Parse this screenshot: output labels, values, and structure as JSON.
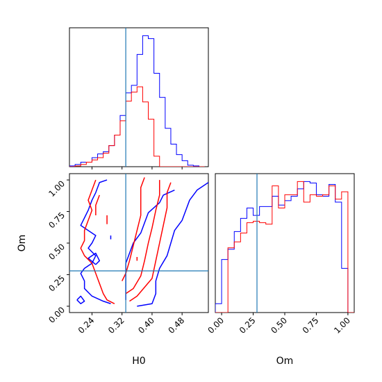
{
  "chart_data": {
    "type": "corner",
    "parameters": [
      "H0",
      "Om"
    ],
    "truths": {
      "H0": 0.33,
      "Om": 0.28
    },
    "colors": {
      "series_a": "#0000ff",
      "series_b": "#ff0000",
      "truth": "#1f77b4"
    },
    "panels": [
      {
        "id": "hist-H0",
        "type": "histogram",
        "x_param": "H0",
        "xlim": [
          0.18,
          0.55
        ],
        "bin_edges": [
          0.18,
          0.195,
          0.21,
          0.225,
          0.24,
          0.255,
          0.27,
          0.285,
          0.3,
          0.315,
          0.33,
          0.345,
          0.36,
          0.375,
          0.39,
          0.405,
          0.42,
          0.435,
          0.45,
          0.465,
          0.48,
          0.495,
          0.51,
          0.525,
          0.54
        ],
        "series": [
          {
            "color_key": "series_a",
            "counts": [
              1,
              3,
              6,
              6,
              12,
              17,
              20,
              28,
              42,
              68,
              98,
              108,
              149,
              174,
              170,
              124,
              92,
              51,
              30,
              16,
              8,
              2,
              1,
              0
            ]
          },
          {
            "color_key": "series_b",
            "counts": [
              0,
              1,
              3,
              6,
              9,
              12,
              18,
              28,
              42,
              61,
              87,
              99,
              106,
              86,
              63,
              14,
              0,
              0,
              0,
              0,
              0,
              0,
              0,
              0
            ]
          }
        ],
        "xticks": [
          0.24,
          0.32,
          0.4,
          0.48
        ]
      },
      {
        "id": "contour-H0-Om",
        "type": "contour",
        "x_param": "H0",
        "y_param": "Om",
        "xlim": [
          0.18,
          0.55
        ],
        "ylim": [
          -0.05,
          1.05
        ],
        "xticks": [
          0.24,
          0.32,
          0.4,
          0.48
        ],
        "xtick_labels": [
          "0.24",
          "0.32",
          "0.40",
          "0.48"
        ],
        "yticks": [
          0.0,
          0.25,
          0.5,
          0.75,
          1.0
        ],
        "ytick_labels": [
          "0.00",
          "0.25",
          "0.50",
          "0.75",
          "1.00"
        ],
        "xlabel": "H0",
        "ylabel": "Om",
        "series": [
          {
            "color_key": "series_a",
            "contours": [
              [
                [
                  0.2,
                  0.05
                ],
                [
                  0.21,
                  0.02
                ],
                [
                  0.22,
                  0.04
                ],
                [
                  0.21,
                  0.08
                ],
                [
                  0.2,
                  0.05
                ]
              ],
              [
                [
                  0.28,
                  1.0
                ],
                [
                  0.26,
                  0.98
                ],
                [
                  0.25,
                  0.9
                ],
                [
                  0.24,
                  0.84
                ],
                [
                  0.23,
                  0.76
                ],
                [
                  0.22,
                  0.7
                ],
                [
                  0.21,
                  0.64
                ],
                [
                  0.23,
                  0.6
                ],
                [
                  0.25,
                  0.56
                ],
                [
                  0.24,
                  0.5
                ],
                [
                  0.23,
                  0.46
                ],
                [
                  0.25,
                  0.4
                ],
                [
                  0.24,
                  0.34
                ],
                [
                  0.22,
                  0.3
                ],
                [
                  0.21,
                  0.26
                ],
                [
                  0.22,
                  0.2
                ],
                [
                  0.22,
                  0.14
                ],
                [
                  0.24,
                  0.08
                ],
                [
                  0.27,
                  0.04
                ],
                [
                  0.29,
                  0.02
                ]
              ],
              [
                [
                  0.25,
                  0.33
                ],
                [
                  0.23,
                  0.38
                ],
                [
                  0.25,
                  0.42
                ],
                [
                  0.26,
                  0.36
                ],
                [
                  0.25,
                  0.33
                ]
              ],
              [
                [
                  0.33,
                  0.05
                ],
                [
                  0.33,
                  0.14
                ],
                [
                  0.33,
                  0.24
                ],
                [
                  0.33,
                  0.34
                ],
                [
                  0.34,
                  0.42
                ],
                [
                  0.35,
                  0.5
                ],
                [
                  0.37,
                  0.58
                ],
                [
                  0.38,
                  0.66
                ],
                [
                  0.39,
                  0.74
                ],
                [
                  0.42,
                  0.82
                ],
                [
                  0.43,
                  0.88
                ],
                [
                  0.46,
                  0.92
                ]
              ],
              [
                [
                  0.36,
                  0.0
                ],
                [
                  0.4,
                  0.02
                ],
                [
                  0.41,
                  0.1
                ],
                [
                  0.41,
                  0.2
                ],
                [
                  0.42,
                  0.3
                ],
                [
                  0.44,
                  0.4
                ],
                [
                  0.45,
                  0.5
                ],
                [
                  0.46,
                  0.6
                ],
                [
                  0.48,
                  0.68
                ],
                [
                  0.49,
                  0.76
                ],
                [
                  0.5,
                  0.84
                ],
                [
                  0.52,
                  0.92
                ],
                [
                  0.55,
                  0.98
                ]
              ],
              [
                [
                  0.29,
                  0.53
                ],
                [
                  0.29,
                  0.56
                ]
              ]
            ]
          },
          {
            "color_key": "series_b",
            "contours": [
              [
                [
                  0.25,
                  1.0
                ],
                [
                  0.24,
                  0.92
                ],
                [
                  0.23,
                  0.84
                ],
                [
                  0.24,
                  0.76
                ],
                [
                  0.23,
                  0.68
                ],
                [
                  0.22,
                  0.6
                ],
                [
                  0.22,
                  0.52
                ],
                [
                  0.21,
                  0.46
                ],
                [
                  0.22,
                  0.4
                ],
                [
                  0.24,
                  0.34
                ],
                [
                  0.25,
                  0.26
                ],
                [
                  0.26,
                  0.18
                ],
                [
                  0.27,
                  0.1
                ],
                [
                  0.28,
                  0.05
                ],
                [
                  0.3,
                  0.02
                ]
              ],
              [
                [
                  0.26,
                  0.88
                ],
                [
                  0.25,
                  0.8
                ],
                [
                  0.25,
                  0.72
                ]
              ],
              [
                [
                  0.28,
                  0.72
                ],
                [
                  0.28,
                  0.65
                ]
              ],
              [
                [
                  0.32,
                  0.2
                ],
                [
                  0.33,
                  0.26
                ],
                [
                  0.34,
                  0.36
                ],
                [
                  0.35,
                  0.48
                ],
                [
                  0.36,
                  0.6
                ],
                [
                  0.37,
                  0.72
                ],
                [
                  0.37,
                  0.84
                ],
                [
                  0.37,
                  0.94
                ],
                [
                  0.38,
                  1.02
                ]
              ],
              [
                [
                  0.33,
                  0.1
                ],
                [
                  0.35,
                  0.14
                ],
                [
                  0.37,
                  0.24
                ],
                [
                  0.38,
                  0.36
                ],
                [
                  0.39,
                  0.5
                ],
                [
                  0.4,
                  0.62
                ],
                [
                  0.41,
                  0.76
                ],
                [
                  0.42,
                  0.88
                ],
                [
                  0.42,
                  1.0
                ]
              ],
              [
                [
                  0.34,
                  0.04
                ],
                [
                  0.36,
                  0.08
                ],
                [
                  0.4,
                  0.22
                ],
                [
                  0.41,
                  0.36
                ],
                [
                  0.42,
                  0.5
                ],
                [
                  0.43,
                  0.64
                ],
                [
                  0.44,
                  0.78
                ],
                [
                  0.44,
                  0.9
                ],
                [
                  0.45,
                  0.98
                ]
              ],
              [
                [
                  0.36,
                  0.36
                ],
                [
                  0.36,
                  0.39
                ]
              ]
            ]
          }
        ]
      },
      {
        "id": "hist-Om",
        "type": "histogram",
        "x_param": "Om",
        "xlim": [
          -0.05,
          1.05
        ],
        "bin_edges": [
          -0.05,
          0.0,
          0.05,
          0.1,
          0.15,
          0.2,
          0.25,
          0.3,
          0.35,
          0.4,
          0.45,
          0.5,
          0.55,
          0.6,
          0.65,
          0.7,
          0.75,
          0.8,
          0.85,
          0.9,
          0.95,
          1.0,
          1.05
        ],
        "xticks": [
          0.0,
          0.25,
          0.5,
          0.75,
          1.0
        ],
        "xtick_labels": [
          "0.00",
          "0.25",
          "0.50",
          "0.75",
          "1.00"
        ],
        "xlabel": "Om",
        "series": [
          {
            "color_key": "series_a",
            "counts": [
              6,
              36,
              43,
              55,
              64,
              71,
              66,
              72,
              72,
              79,
              73,
              76,
              79,
              84,
              89,
              88,
              80,
              79,
              87,
              75,
              30,
              0
            ]
          },
          {
            "color_key": "series_b",
            "counts": [
              0,
              0,
              44,
              48,
              54,
              61,
              62,
              61,
              60,
              86,
              71,
              80,
              80,
              89,
              75,
              80,
              79,
              80,
              86,
              77,
              82,
              0
            ]
          }
        ]
      }
    ]
  }
}
